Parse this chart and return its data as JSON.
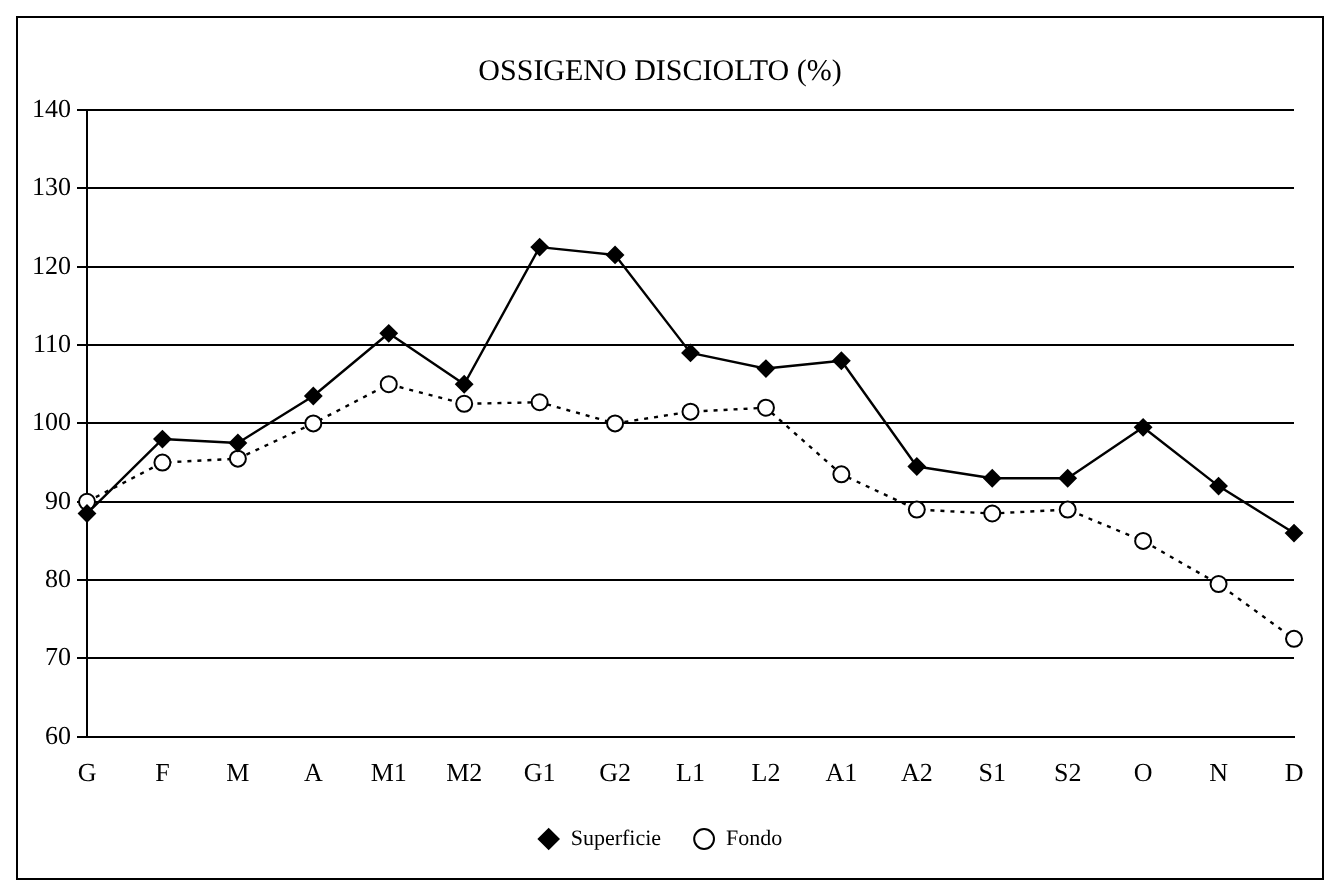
{
  "chart_data": {
    "type": "line",
    "title": "OSSIGENO DISCIOLTO (%)",
    "categories": [
      "G",
      "F",
      "M",
      "A",
      "M1",
      "M2",
      "G1",
      "G2",
      "L1",
      "L2",
      "A1",
      "A2",
      "S1",
      "S2",
      "O",
      "N",
      "D"
    ],
    "series": [
      {
        "name": "Superficie",
        "color": "#000000",
        "marker": "diamond",
        "line_style": "solid",
        "values": [
          88.5,
          98,
          97.5,
          103.5,
          111.5,
          105,
          122.5,
          121.5,
          109,
          107,
          108,
          94.5,
          93,
          93,
          99.5,
          92,
          86
        ]
      },
      {
        "name": "Fondo",
        "color": "#000000",
        "marker": "circle",
        "line_style": "dotted",
        "values": [
          90,
          95,
          95.5,
          100,
          105,
          102.5,
          102.7,
          100,
          101.5,
          102,
          93.5,
          89,
          88.5,
          89,
          85,
          79.5,
          72.5
        ]
      }
    ],
    "ylim": [
      60,
      140
    ],
    "yticks": [
      60,
      70,
      80,
      90,
      100,
      110,
      120,
      130,
      140
    ],
    "grid": "y",
    "legend": "bottom"
  }
}
